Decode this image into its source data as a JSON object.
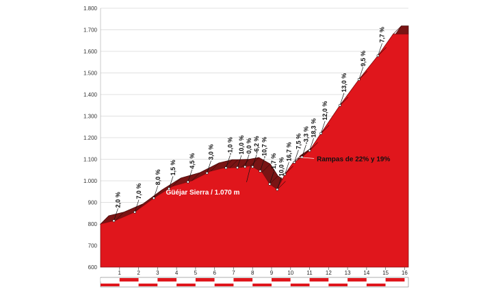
{
  "chart_data": {
    "type": "area",
    "title": "",
    "xlabel": "",
    "ylabel": "",
    "xlim": [
      0,
      16.2
    ],
    "ylim": [
      600,
      1800
    ],
    "y_ticks": [
      600,
      700,
      800,
      900,
      1000,
      1100,
      1200,
      1300,
      1400,
      1500,
      1600,
      1700,
      1800
    ],
    "y_tick_labels": [
      "600",
      "700",
      "800",
      "900",
      "1.000",
      "1.100",
      "1.200",
      "1.300",
      "1.400",
      "1.500",
      "1.600",
      "1.700",
      "1.800"
    ],
    "x_ticks": [
      1,
      2,
      3,
      4,
      5,
      6,
      7,
      8,
      9,
      10,
      11,
      12,
      13,
      14,
      15,
      16
    ],
    "x_tick_labels": [
      "1",
      "2",
      "3",
      "4",
      "5",
      "6",
      "7",
      "8",
      "9",
      "10",
      "11",
      "12",
      "13",
      "14",
      "15",
      "16"
    ],
    "grid": "horizontal",
    "colors": {
      "fill": "#e0161c",
      "band": "#7a1414",
      "band_edge": "#4a0a0a",
      "grid": "#d6d6d6"
    },
    "profile": {
      "x": [
        0,
        0.8,
        1.8,
        2.8,
        3.8,
        4.8,
        5.8,
        6.5,
        6.8,
        7.4,
        7.9,
        8.5,
        8.9,
        9.3,
        9.7,
        10.1,
        10.6,
        11.0,
        11.6,
        12.6,
        13.6,
        14.6,
        15.4,
        16.2
      ],
      "y": [
        800,
        817,
        855,
        920,
        975,
        1000,
        1045,
        1060,
        1060,
        1062,
        1070,
        1040,
        985,
        960,
        1030,
        1080,
        1110,
        1140,
        1220,
        1350,
        1470,
        1580,
        1680,
        1680
      ]
    },
    "grade_labels": [
      {
        "text": "2,0 %",
        "x": 0.7
      },
      {
        "text": "7,0 %",
        "x": 1.8
      },
      {
        "text": "8,0 %",
        "x": 2.8
      },
      {
        "text": "1,5 %",
        "x": 3.6
      },
      {
        "text": "4,5 %",
        "x": 4.6
      },
      {
        "text": "3,0 %",
        "x": 5.6
      },
      {
        "text": "-1,0 %",
        "x": 6.6
      },
      {
        "text": "10,0 %",
        "x": 7.2
      },
      {
        "text": "0,0 %",
        "x": 7.6
      },
      {
        "text": "-6,2 %",
        "x": 8.0
      },
      {
        "text": "-10,7 %",
        "x": 8.4
      },
      {
        "text": "-1,7 %",
        "x": 8.9
      },
      {
        "text": "10,0 %",
        "x": 9.3
      },
      {
        "text": "16,7 %",
        "x": 9.7
      },
      {
        "text": "7,5 %",
        "x": 10.2
      },
      {
        "text": "-3,3 %",
        "x": 10.6
      },
      {
        "text": "18,3 %",
        "x": 11.0
      },
      {
        "text": "12,0 %",
        "x": 11.6
      },
      {
        "text": "13,0 %",
        "x": 12.6
      },
      {
        "text": "9,5 %",
        "x": 13.6
      },
      {
        "text": "7,7 %",
        "x": 14.6
      }
    ],
    "annotations": [
      {
        "text": "Güéjar Sierra / 1.070 m",
        "x": 7.9,
        "y": 1070
      },
      {
        "text": "Rampas de 22% y 19%",
        "x": 10.3,
        "y": 1110
      }
    ]
  }
}
